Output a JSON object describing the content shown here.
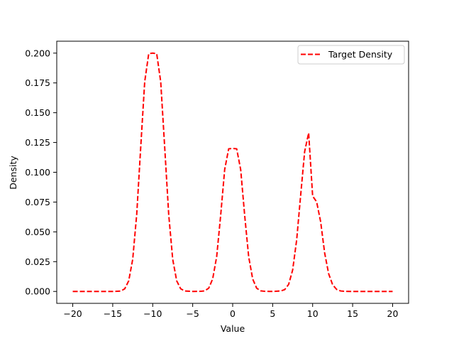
{
  "chart_data": {
    "type": "line",
    "title": "",
    "xlabel": "Value",
    "ylabel": "Density",
    "xlim": [
      -22,
      22
    ],
    "ylim": [
      -0.01,
      0.21
    ],
    "xticks": [
      -20,
      -15,
      -10,
      -5,
      0,
      5,
      10,
      15,
      20
    ],
    "xtick_labels": [
      "−20",
      "−15",
      "−10",
      "−5",
      "0",
      "5",
      "10",
      "15",
      "20"
    ],
    "yticks": [
      0.0,
      0.025,
      0.05,
      0.075,
      0.1,
      0.125,
      0.15,
      0.175,
      0.2
    ],
    "ytick_labels": [
      "0.000",
      "0.025",
      "0.050",
      "0.075",
      "0.100",
      "0.125",
      "0.150",
      "0.175",
      "0.200"
    ],
    "grid": false,
    "legend_position": "top-right",
    "series": [
      {
        "name": "Target Density",
        "color": "#ff0000",
        "line_style": "dashed",
        "x": [
          -20,
          -19,
          -18,
          -17,
          -16,
          -15,
          -14,
          -13.5,
          -13,
          -12.5,
          -12,
          -11.5,
          -11,
          -10.5,
          -10,
          -9.5,
          -9,
          -8.5,
          -8,
          -7.5,
          -7,
          -6.5,
          -6,
          -5,
          -4,
          -3.5,
          -3,
          -2.5,
          -2,
          -1.5,
          -1,
          -0.5,
          0,
          0.5,
          1,
          1.5,
          2,
          2.5,
          3,
          3.5,
          4,
          5,
          6,
          6.5,
          7,
          7.5,
          8,
          8.5,
          9,
          9.5,
          10,
          10.5,
          11,
          11.5,
          12,
          12.5,
          13,
          13.5,
          14,
          15,
          16,
          17,
          18,
          19,
          20
        ],
        "y": [
          0.0,
          0.0,
          0.0,
          0.0,
          0.0,
          0.0,
          0.0003,
          0.0022,
          0.0089,
          0.027,
          0.0647,
          0.1209,
          0.176,
          0.1995,
          0.2,
          0.1995,
          0.176,
          0.1209,
          0.0647,
          0.027,
          0.0089,
          0.0022,
          0.0004,
          0.0,
          0.0001,
          0.0005,
          0.0027,
          0.0105,
          0.0292,
          0.0639,
          0.1023,
          0.1197,
          0.12,
          0.1197,
          0.1023,
          0.0639,
          0.0292,
          0.0105,
          0.0027,
          0.0005,
          0.0001,
          0.0,
          0.0004,
          0.0015,
          0.0059,
          0.018,
          0.0431,
          0.0806,
          0.1173,
          0.133,
          0.08,
          0.0752,
          0.0585,
          0.0324,
          0.0149,
          0.0056,
          0.0017,
          0.0004,
          0.0001,
          0.0,
          0.0,
          0.0,
          0.0,
          0.0,
          0.0
        ]
      }
    ]
  }
}
